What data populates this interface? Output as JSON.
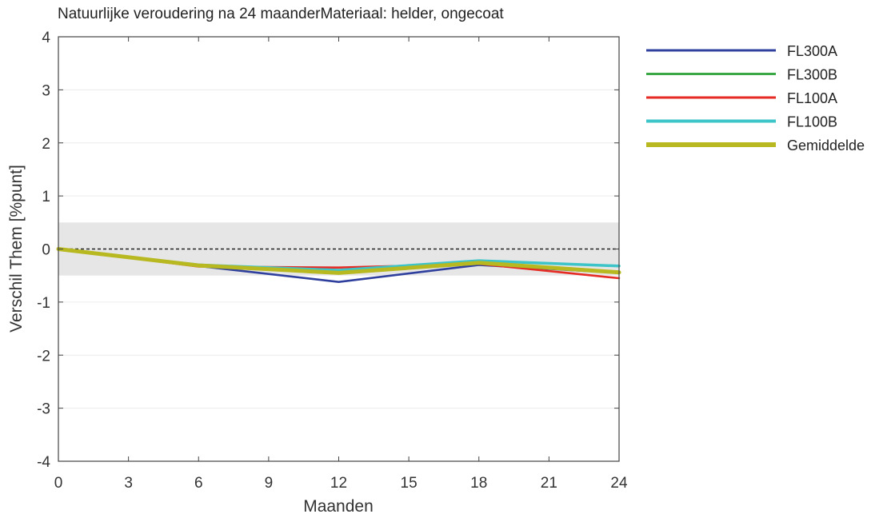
{
  "chart_data": {
    "type": "line",
    "title": "Natuurlijke veroudering na 24 maanderMateriaal: helder, ongecoat",
    "xlabel": "Maanden",
    "ylabel": "Verschil Them [%punt]",
    "xlim": [
      0,
      24
    ],
    "ylim": [
      -4,
      4
    ],
    "x_ticks": [
      0,
      3,
      6,
      9,
      12,
      15,
      18,
      21,
      24
    ],
    "y_ticks": [
      -4,
      -3,
      -2,
      -1,
      0,
      1,
      2,
      3,
      4
    ],
    "band": [
      -0.5,
      0.5
    ],
    "band_color": "#e6e6e6",
    "zero_line": 0,
    "grid": true,
    "legend_position": "outside-right",
    "x": [
      0,
      6,
      12,
      18,
      24
    ],
    "series": [
      {
        "name": "FL300A",
        "color": "#2e3f9e",
        "values": [
          0,
          -0.32,
          -0.62,
          -0.3,
          -0.45
        ]
      },
      {
        "name": "FL300B",
        "color": "#3aa845",
        "values": [
          0,
          -0.3,
          -0.42,
          -0.25,
          -0.43
        ]
      },
      {
        "name": "FL100A",
        "color": "#e52b24",
        "values": [
          0,
          -0.33,
          -0.35,
          -0.28,
          -0.55
        ]
      },
      {
        "name": "FL100B",
        "color": "#3cc4c8",
        "values": [
          0,
          -0.3,
          -0.4,
          -0.22,
          -0.32
        ]
      },
      {
        "name": "Gemiddelde",
        "color": "#b8b820",
        "values": [
          0,
          -0.31,
          -0.45,
          -0.26,
          -0.44
        ]
      }
    ]
  }
}
